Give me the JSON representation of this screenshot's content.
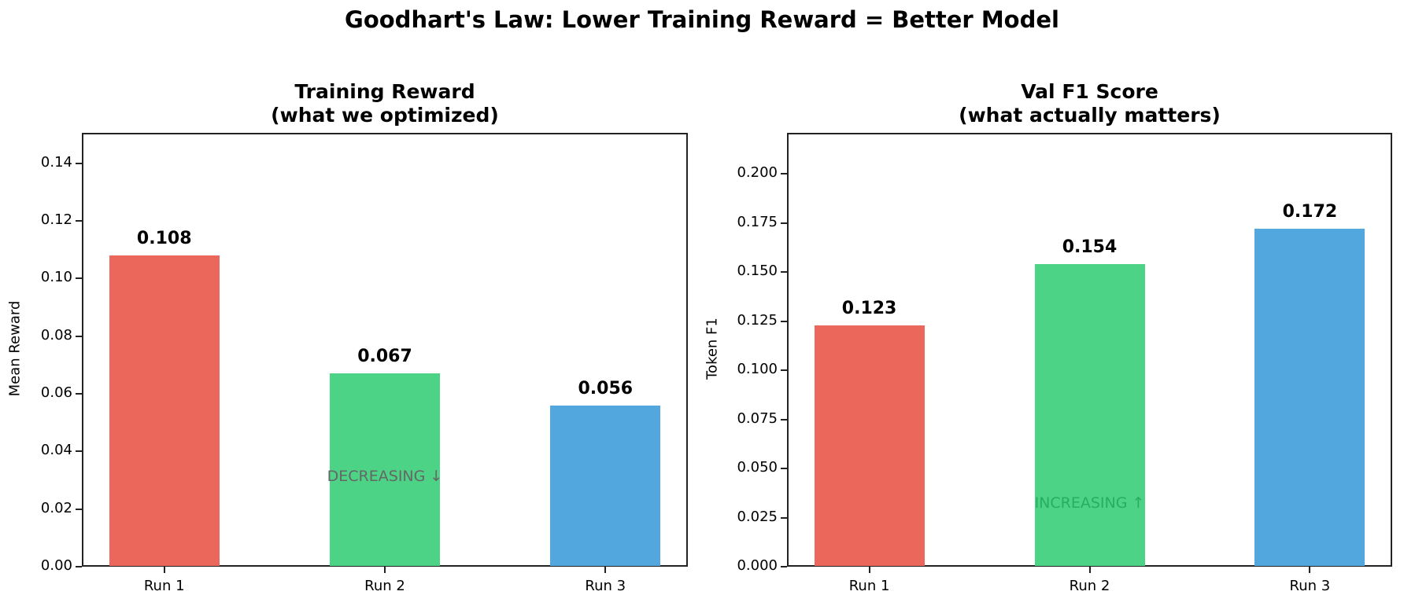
{
  "suptitle": "Goodhart's Law: Lower Training Reward = Better Model",
  "chart_data": [
    {
      "type": "bar",
      "title": "Training Reward\n(what we optimized)",
      "title_lines": [
        "Training Reward",
        "(what we optimized)"
      ],
      "xlabel": "",
      "ylabel": "Mean Reward",
      "categories": [
        "Run 1",
        "Run 2",
        "Run 3"
      ],
      "values": [
        0.108,
        0.067,
        0.056
      ],
      "value_labels": [
        "0.108",
        "0.067",
        "0.056"
      ],
      "colors": [
        "#eb675c",
        "#4dd386",
        "#52a7de"
      ],
      "ylim": [
        0,
        0.15
      ],
      "yticks": [
        0.0,
        0.02,
        0.04,
        0.06,
        0.08,
        0.1,
        0.12,
        0.14
      ],
      "ytick_labels": [
        "0.00",
        "0.02",
        "0.04",
        "0.06",
        "0.08",
        "0.10",
        "0.12",
        "0.14"
      ],
      "grid": false,
      "annotation": {
        "text": "DECREASING ↓",
        "x": 1,
        "y": 0.031,
        "color": "#666666"
      }
    },
    {
      "type": "bar",
      "title": "Val F1 Score\n(what actually matters)",
      "title_lines": [
        "Val F1 Score",
        "(what actually matters)"
      ],
      "xlabel": "",
      "ylabel": "Token F1",
      "categories": [
        "Run 1",
        "Run 2",
        "Run 3"
      ],
      "values": [
        0.123,
        0.154,
        0.172
      ],
      "value_labels": [
        "0.123",
        "0.154",
        "0.172"
      ],
      "colors": [
        "#eb675c",
        "#4dd386",
        "#52a7de"
      ],
      "ylim": [
        0,
        0.22
      ],
      "yticks": [
        0.0,
        0.025,
        0.05,
        0.075,
        0.1,
        0.125,
        0.15,
        0.175,
        0.2
      ],
      "ytick_labels": [
        "0.000",
        "0.025",
        "0.050",
        "0.075",
        "0.100",
        "0.125",
        "0.150",
        "0.175",
        "0.200"
      ],
      "grid": false,
      "annotation": {
        "text": "INCREASING ↑",
        "x": 1,
        "y": 0.032,
        "color": "#27ae60"
      }
    }
  ]
}
